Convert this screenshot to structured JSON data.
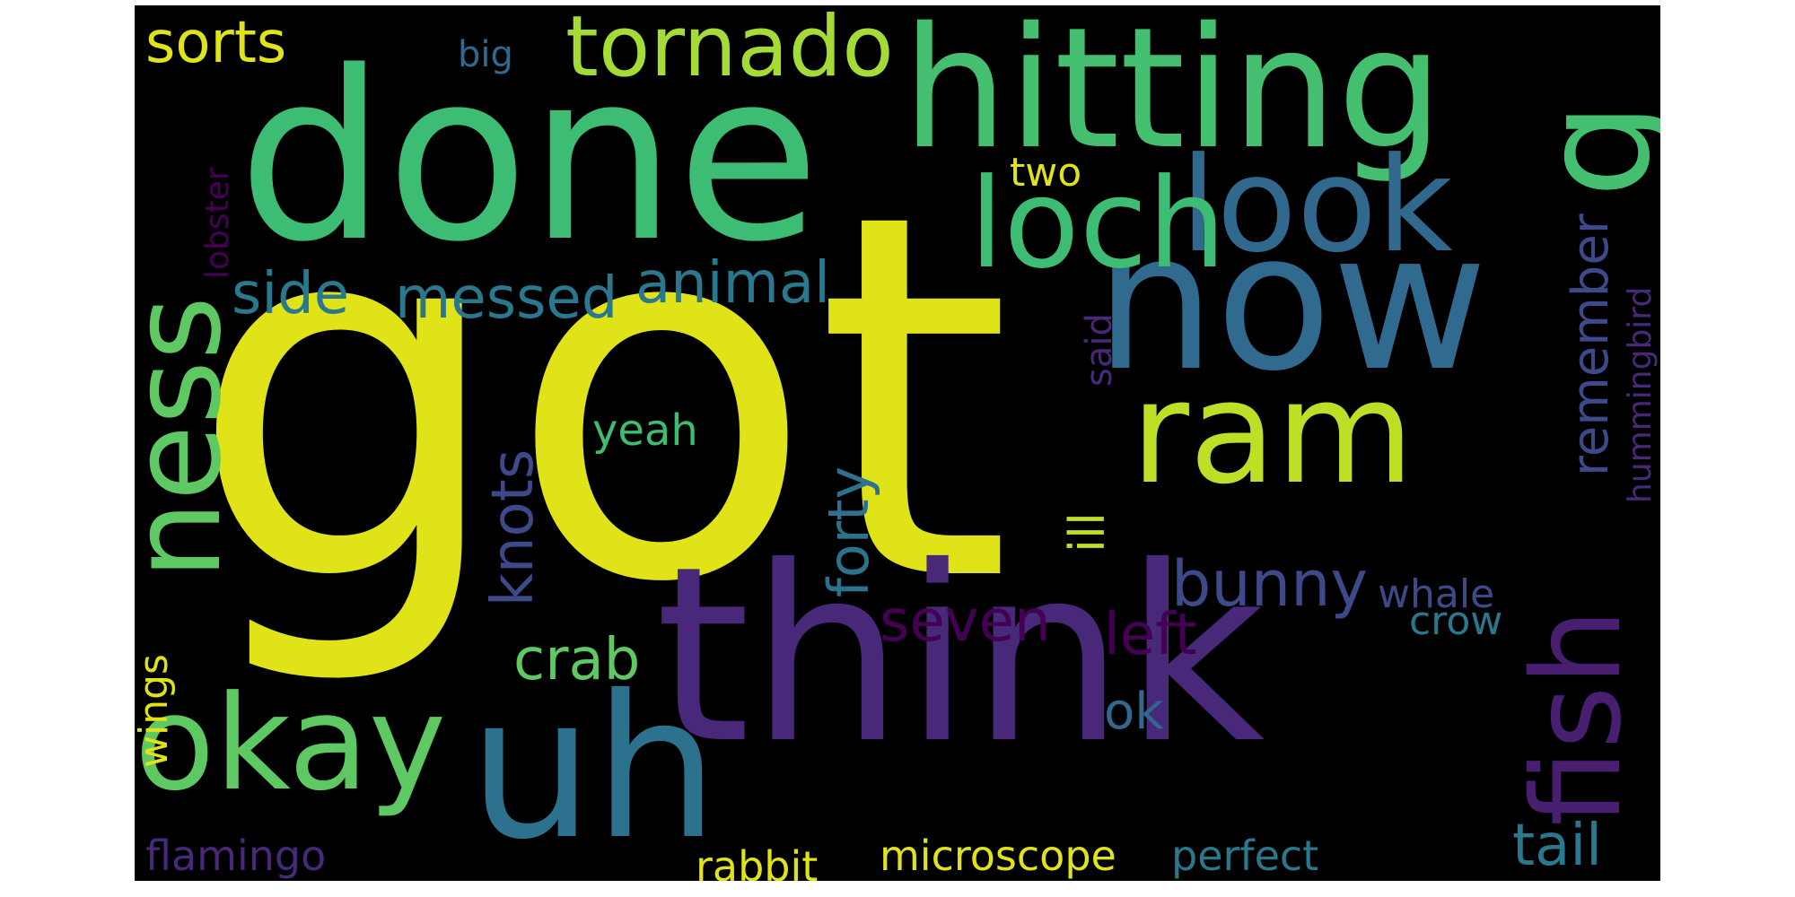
{
  "words": [
    {
      "text": "got",
      "color": "#dfe318",
      "weight": 1.0
    },
    {
      "text": "think",
      "color": "#482878",
      "weight": 0.85
    },
    {
      "text": "done",
      "color": "#3dbc74",
      "weight": 0.65
    },
    {
      "text": "hitting",
      "color": "#44bf70",
      "weight": 0.5
    },
    {
      "text": "now",
      "color": "#306a8e",
      "weight": 0.48
    },
    {
      "text": "ram",
      "color": "#bddf26",
      "weight": 0.38
    },
    {
      "text": "uh",
      "color": "#2c728e",
      "weight": 0.38
    },
    {
      "text": "okay",
      "color": "#5ec962",
      "weight": 0.32
    },
    {
      "text": "look",
      "color": "#31688e",
      "weight": 0.32
    },
    {
      "text": "loch",
      "color": "#3dbc74",
      "weight": 0.3
    },
    {
      "text": "ness",
      "color": "#5ec962",
      "weight": 0.3
    },
    {
      "text": "fish",
      "color": "#481f70",
      "weight": 0.3
    },
    {
      "text": "g",
      "color": "#44bf70",
      "weight": 0.3
    },
    {
      "text": "tornado",
      "color": "#a5db36",
      "weight": 0.2
    },
    {
      "text": "animal",
      "color": "#2a788e",
      "weight": 0.15
    },
    {
      "text": "messed",
      "color": "#2a788e",
      "weight": 0.14
    },
    {
      "text": "side",
      "color": "#2a788e",
      "weight": 0.14
    },
    {
      "text": "knots",
      "color": "#3e4989",
      "weight": 0.14
    },
    {
      "text": "forty",
      "color": "#2c728e",
      "weight": 0.14
    },
    {
      "text": "bunny",
      "color": "#3e4989",
      "weight": 0.14
    },
    {
      "text": "seven",
      "color": "#440154",
      "weight": 0.14
    },
    {
      "text": "left",
      "color": "#440154",
      "weight": 0.14
    },
    {
      "text": "crab",
      "color": "#5ec962",
      "weight": 0.14
    },
    {
      "text": "tail",
      "color": "#2a788e",
      "weight": 0.14
    },
    {
      "text": "remember",
      "color": "#3e4989",
      "weight": 0.13
    },
    {
      "text": "sorts",
      "color": "#dfe318",
      "weight": 0.12
    },
    {
      "text": "ok",
      "color": "#31688e",
      "weight": 0.12
    },
    {
      "text": "ill",
      "color": "#bddf26",
      "weight": 0.11
    },
    {
      "text": "yeah",
      "color": "#3dbc74",
      "weight": 0.1
    },
    {
      "text": "whale",
      "color": "#3e4989",
      "weight": 0.1
    },
    {
      "text": "crow",
      "color": "#2a788e",
      "weight": 0.1
    },
    {
      "text": "wings",
      "color": "#dfe318",
      "weight": 0.09
    },
    {
      "text": "microscope",
      "color": "#dfe318",
      "weight": 0.1
    },
    {
      "text": "perfect",
      "color": "#2a788e",
      "weight": 0.1
    },
    {
      "text": "rabbit",
      "color": "#dfe318",
      "weight": 0.1
    },
    {
      "text": "flamingo",
      "color": "#482878",
      "weight": 0.1
    },
    {
      "text": "two",
      "color": "#dfe318",
      "weight": 0.09
    },
    {
      "text": "said",
      "color": "#482878",
      "weight": 0.09
    },
    {
      "text": "hummingbird",
      "color": "#482878",
      "weight": 0.08
    },
    {
      "text": "lobster",
      "color": "#440154",
      "weight": 0.08
    },
    {
      "text": "big",
      "color": "#31688e",
      "weight": 0.08
    }
  ]
}
